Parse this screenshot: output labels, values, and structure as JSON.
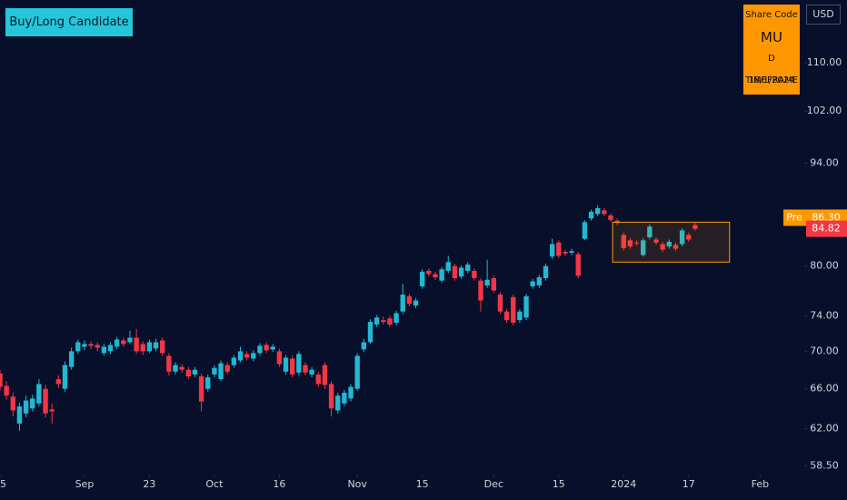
{
  "header": {
    "badge": "Buy/Long Candidate ↗",
    "currency": "USD"
  },
  "info_box": {
    "label": "Share Code",
    "code": "MU",
    "timeframe": "D TIMEFRAME",
    "date": "18/1/2024"
  },
  "chart_data": {
    "type": "candlestick",
    "open": [
      67.6,
      66.3,
      65.2,
      62.5,
      63.5,
      64.0,
      64.5,
      66.0,
      63.9,
      67.0,
      66.0,
      68.3,
      70.0,
      70.5,
      70.8,
      70.7,
      69.8,
      70.0,
      70.5,
      71.2,
      71.0,
      71.5,
      70.8,
      70.0,
      70.3,
      71.2,
      69.5,
      67.8,
      68.3,
      68.0,
      67.5,
      67.3,
      66.0,
      67.5,
      67.0,
      68.5,
      68.5,
      69.0,
      69.7,
      69.2,
      69.8,
      70.7,
      70.2,
      70.0,
      67.8,
      69.2,
      67.7,
      68.5,
      67.5,
      67.5,
      68.5,
      66.5,
      63.8,
      64.5,
      65.0,
      66.0,
      70.2,
      71.0,
      73.0,
      73.5,
      73.7,
      73.2,
      74.5,
      76.3,
      75.2,
      77.5,
      79.4,
      79.0,
      78.2,
      79.4,
      80.0,
      78.7,
      79.4,
      79.4,
      78.2,
      77.6,
      78.5,
      76.5,
      74.5,
      76.2,
      73.5,
      73.8,
      77.5,
      77.6,
      78.5,
      81.2,
      83.0,
      81.8,
      81.7,
      81.5,
      83.5,
      86.2,
      86.8,
      87.3,
      86.6,
      85.9,
      84.0,
      83.3,
      83.0,
      81.4,
      83.7,
      83.4,
      82.8,
      82.5,
      82.7,
      82.8,
      84.0,
      85.3
    ],
    "high": [
      68.0,
      66.8,
      65.6,
      64.6,
      65.3,
      65.4,
      67.0,
      66.4,
      64.5,
      67.4,
      68.9,
      70.4,
      71.3,
      71.2,
      71.1,
      71.0,
      70.8,
      71.0,
      71.6,
      71.5,
      72.3,
      72.5,
      71.1,
      71.3,
      71.4,
      71.5,
      69.8,
      68.8,
      68.6,
      68.3,
      68.3,
      67.6,
      67.5,
      68.5,
      69.0,
      68.8,
      69.6,
      70.5,
      70.0,
      70.1,
      70.9,
      71.0,
      70.8,
      70.3,
      69.6,
      69.5,
      70.0,
      68.8,
      68.3,
      67.8,
      68.8,
      66.8,
      65.6,
      65.9,
      66.5,
      69.8,
      71.4,
      73.6,
      74.1,
      73.9,
      74.0,
      74.6,
      77.8,
      76.6,
      76.1,
      79.6,
      79.7,
      79.3,
      79.9,
      81.3,
      80.3,
      80.1,
      80.5,
      79.7,
      78.5,
      80.8,
      78.8,
      76.8,
      74.8,
      76.5,
      74.8,
      76.6,
      78.4,
      78.9,
      80.3,
      83.5,
      83.3,
      82.1,
      82.2,
      81.8,
      86.0,
      87.4,
      88.0,
      87.6,
      86.9,
      86.2,
      84.3,
      83.6,
      83.3,
      83.6,
      85.4,
      83.7,
      83.1,
      83.4,
      83.0,
      84.9,
      84.3,
      85.6
    ],
    "low": [
      65.8,
      64.9,
      63.2,
      61.8,
      63.1,
      63.7,
      64.2,
      63.1,
      62.5,
      66.1,
      65.7,
      68.0,
      69.7,
      70.1,
      70.2,
      70.0,
      69.5,
      69.7,
      70.2,
      70.5,
      70.8,
      69.7,
      69.6,
      69.8,
      70.0,
      69.5,
      67.4,
      67.5,
      67.7,
      67.0,
      67.2,
      63.7,
      65.7,
      67.2,
      66.8,
      67.5,
      68.2,
      68.8,
      69.0,
      68.9,
      69.5,
      69.8,
      69.9,
      68.3,
      67.5,
      67.2,
      67.4,
      67.4,
      67.2,
      66.2,
      66.0,
      63.2,
      63.5,
      64.2,
      64.7,
      65.8,
      69.9,
      70.8,
      72.7,
      73.0,
      72.7,
      72.9,
      74.2,
      75.1,
      74.9,
      77.2,
      78.7,
      78.3,
      77.9,
      79.1,
      78.2,
      78.4,
      79.1,
      78.2,
      74.5,
      77.3,
      76.7,
      74.2,
      73.2,
      72.9,
      73.2,
      73.5,
      77.2,
      77.3,
      78.2,
      80.9,
      81.0,
      81.3,
      81.4,
      78.5,
      83.3,
      85.9,
      86.5,
      86.5,
      85.7,
      85.3,
      82.0,
      82.2,
      82.6,
      81.2,
      83.4,
      82.7,
      81.8,
      82.2,
      81.9,
      82.5,
      83.1,
      84.6
    ],
    "close": [
      66.2,
      65.3,
      63.8,
      64.2,
      64.8,
      65.0,
      66.5,
      63.5,
      63.7,
      66.5,
      68.5,
      70.0,
      71.0,
      70.8,
      70.6,
      70.4,
      70.5,
      70.7,
      71.3,
      70.8,
      71.5,
      70.0,
      70.0,
      71.0,
      71.0,
      69.8,
      67.8,
      68.5,
      68.0,
      67.3,
      68.0,
      64.7,
      67.2,
      68.2,
      68.7,
      67.8,
      69.3,
      70.0,
      69.3,
      69.8,
      70.6,
      70.1,
      70.5,
      68.6,
      69.3,
      67.5,
      69.7,
      67.7,
      68.0,
      66.5,
      66.4,
      64.0,
      65.3,
      65.6,
      66.2,
      69.5,
      71.0,
      73.3,
      73.8,
      73.3,
      73.0,
      74.3,
      76.5,
      75.4,
      75.8,
      79.3,
      79.0,
      78.6,
      79.6,
      80.5,
      78.5,
      79.8,
      80.2,
      78.5,
      75.8,
      78.3,
      77.0,
      74.5,
      73.5,
      73.2,
      74.5,
      76.3,
      78.1,
      78.6,
      80.0,
      82.8,
      81.3,
      81.6,
      81.9,
      78.8,
      85.7,
      87.1,
      87.6,
      86.8,
      86.0,
      85.6,
      82.3,
      82.5,
      82.9,
      83.3,
      85.1,
      83.0,
      82.1,
      83.1,
      82.2,
      84.6,
      83.4,
      84.82
    ],
    "up_color": "#22b8d1",
    "down_color": "#f23645",
    "xlim": [
      0,
      123.8
    ],
    "xticks": [
      {
        "value": 0,
        "label": "5"
      },
      {
        "value": 13,
        "label": "Sep"
      },
      23,
      {
        "value": 33,
        "label": "Oct"
      },
      {
        "value": 43,
        "label": "16"
      },
      {
        "value": 55,
        "label": "Nov"
      },
      {
        "value": 65,
        "label": "15"
      },
      {
        "value": 76,
        "label": "Dec"
      },
      {
        "value": 86,
        "label": "15"
      },
      {
        "value": 96,
        "label": "2024"
      },
      {
        "value": 106,
        "label": "17"
      },
      {
        "value": 117,
        "label": "Feb"
      }
    ],
    "ylim": [
      57.7,
      121.4
    ],
    "log_scale": true,
    "yticks": [
      {
        "value": 110,
        "label": "110.00"
      },
      {
        "value": 102,
        "label": "102.00"
      },
      {
        "value": 94,
        "label": "94.00"
      },
      {
        "value": 80,
        "label": "80.00"
      },
      {
        "value": 74,
        "label": "74.00"
      },
      {
        "value": 70,
        "label": "70.00"
      },
      {
        "value": 66,
        "label": "66.00"
      },
      {
        "value": 62,
        "label": "62.00"
      },
      {
        "value": 58.5,
        "label": "58.50"
      }
    ],
    "price_labels": [
      {
        "name": "Pre",
        "value": 86.3,
        "label": "86.30",
        "color": "#ff9800"
      },
      {
        "value": 84.82,
        "label": "84.82",
        "color": "#f23645"
      }
    ],
    "box": {
      "x": [
        94.3,
        112.3
      ],
      "y": [
        80.5,
        85.7
      ],
      "color": "#ff9800"
    }
  }
}
